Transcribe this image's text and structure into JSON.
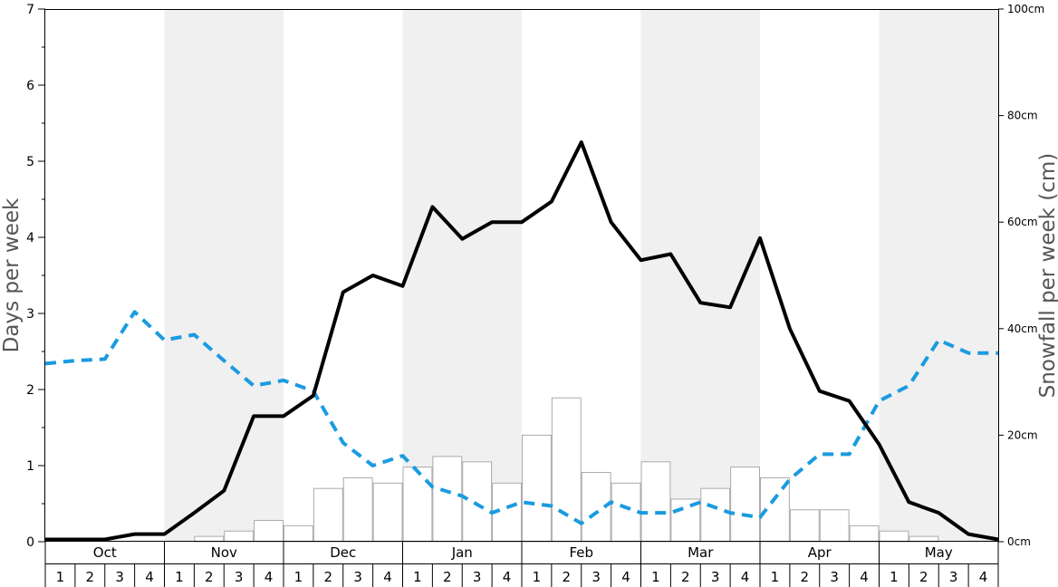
{
  "chart_data": {
    "type": "bar",
    "y_left_label": "Days per week",
    "y_right_label": "Snowfall per week (cm)",
    "y_left_ticks": [
      "0",
      "1",
      "2",
      "3",
      "4",
      "5",
      "6",
      "7"
    ],
    "y_left_range": [
      0,
      7
    ],
    "y_right_ticks": [
      "0cm",
      "20cm",
      "40cm",
      "60cm",
      "80cm",
      "100cm"
    ],
    "y_right_range": [
      0,
      100
    ],
    "months": [
      "Oct",
      "Nov",
      "Dec",
      "Jan",
      "Feb",
      "Mar",
      "Apr",
      "May"
    ],
    "week_labels": [
      "1",
      "2",
      "3",
      "4"
    ],
    "shaded_months": [
      "Nov",
      "Jan",
      "Mar",
      "May"
    ],
    "colors": {
      "bar_fill": "#ffffff",
      "bar_stroke": "#aaaaaa",
      "solid_line": "#000000",
      "dashed_line": "#1a9be0",
      "shade": "#f0f0f0",
      "axis_title": "#555555"
    },
    "series": [
      {
        "kind": "bar",
        "axis": "right",
        "values": [
          0,
          0,
          0,
          0,
          0,
          1,
          2,
          4,
          3,
          10,
          12,
          11,
          14,
          16,
          15,
          11,
          20,
          27,
          13,
          11,
          15,
          8,
          10,
          14,
          12,
          6,
          6,
          3,
          2,
          1,
          0,
          0
        ]
      },
      {
        "kind": "line",
        "style": "solid",
        "axis": "left",
        "values": [
          0.03,
          0.03,
          0.03,
          0.1,
          0.1,
          0.38,
          0.67,
          1.65,
          1.65,
          1.92,
          3.28,
          3.5,
          3.36,
          4.4,
          3.98,
          4.2,
          4.2,
          4.47,
          5.25,
          4.2,
          3.7,
          3.78,
          3.14,
          3.08,
          3.99,
          2.8,
          1.98,
          1.85,
          1.28,
          0.52,
          0.38,
          0.1,
          0.03
        ]
      },
      {
        "kind": "line",
        "style": "dashed",
        "axis": "left",
        "values": [
          2.34,
          2.38,
          2.4,
          3.02,
          2.65,
          2.72,
          2.38,
          2.05,
          2.12,
          1.98,
          1.3,
          1.0,
          1.13,
          0.72,
          0.6,
          0.38,
          0.52,
          0.47,
          0.24,
          0.52,
          0.38,
          0.38,
          0.52,
          0.38,
          0.32,
          0.82,
          1.15,
          1.15,
          1.85,
          2.05,
          2.65,
          2.48,
          2.48
        ]
      }
    ]
  }
}
